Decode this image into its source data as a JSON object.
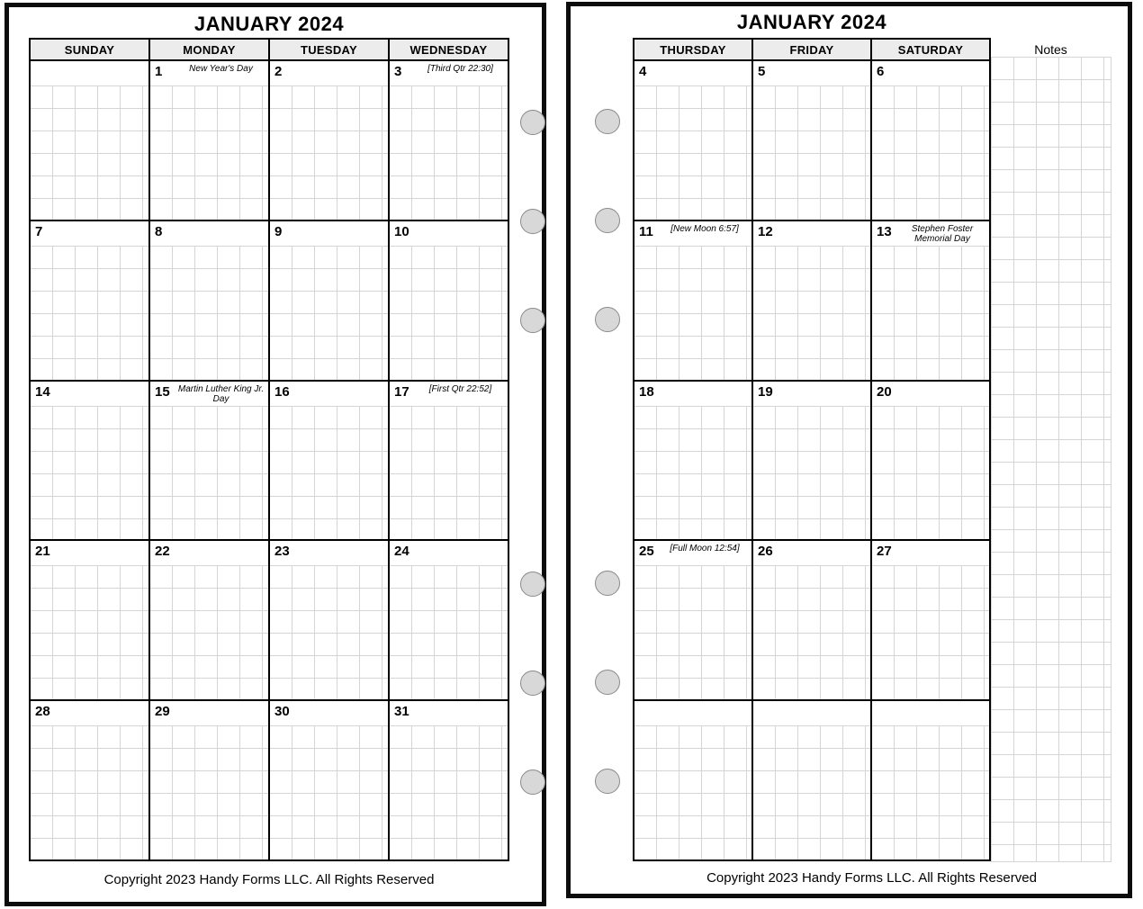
{
  "left_page": {
    "title": "JANUARY 2024",
    "day_headers": [
      "SUNDAY",
      "MONDAY",
      "TUESDAY",
      "WEDNESDAY"
    ],
    "weeks": [
      [
        {
          "day": "",
          "note": ""
        },
        {
          "day": "1",
          "note": "New Year's Day"
        },
        {
          "day": "2",
          "note": ""
        },
        {
          "day": "3",
          "note": "[Third Qtr 22:30]"
        }
      ],
      [
        {
          "day": "7",
          "note": ""
        },
        {
          "day": "8",
          "note": ""
        },
        {
          "day": "9",
          "note": ""
        },
        {
          "day": "10",
          "note": ""
        }
      ],
      [
        {
          "day": "14",
          "note": ""
        },
        {
          "day": "15",
          "note": "Martin Luther King Jr. Day"
        },
        {
          "day": "16",
          "note": ""
        },
        {
          "day": "17",
          "note": "[First Qtr 22:52]"
        }
      ],
      [
        {
          "day": "21",
          "note": ""
        },
        {
          "day": "22",
          "note": ""
        },
        {
          "day": "23",
          "note": ""
        },
        {
          "day": "24",
          "note": ""
        }
      ],
      [
        {
          "day": "28",
          "note": ""
        },
        {
          "day": "29",
          "note": ""
        },
        {
          "day": "30",
          "note": ""
        },
        {
          "day": "31",
          "note": ""
        }
      ]
    ],
    "footer": "Copyright 2023 Handy Forms LLC. All Rights Reserved"
  },
  "right_page": {
    "title": "JANUARY 2024",
    "day_headers": [
      "THURSDAY",
      "FRIDAY",
      "SATURDAY"
    ],
    "notes_label": "Notes",
    "weeks": [
      [
        {
          "day": "4",
          "note": ""
        },
        {
          "day": "5",
          "note": ""
        },
        {
          "day": "6",
          "note": ""
        }
      ],
      [
        {
          "day": "11",
          "note": "[New Moon 6:57]"
        },
        {
          "day": "12",
          "note": ""
        },
        {
          "day": "13",
          "note": "Stephen Foster Memorial Day"
        }
      ],
      [
        {
          "day": "18",
          "note": ""
        },
        {
          "day": "19",
          "note": ""
        },
        {
          "day": "20",
          "note": ""
        }
      ],
      [
        {
          "day": "25",
          "note": "[Full Moon 12:54]"
        },
        {
          "day": "26",
          "note": ""
        },
        {
          "day": "27",
          "note": ""
        }
      ],
      [
        {
          "day": "",
          "note": ""
        },
        {
          "day": "",
          "note": ""
        },
        {
          "day": "",
          "note": ""
        }
      ]
    ],
    "footer": "Copyright 2023 Handy Forms LLC. All Rights Reserved"
  },
  "colors": {
    "header_fill": "#ececec",
    "grid_line": "#d5d5d5",
    "border": "#000000",
    "hole_fill": "#d8d8d8",
    "hole_stroke": "#8a8a8a"
  }
}
